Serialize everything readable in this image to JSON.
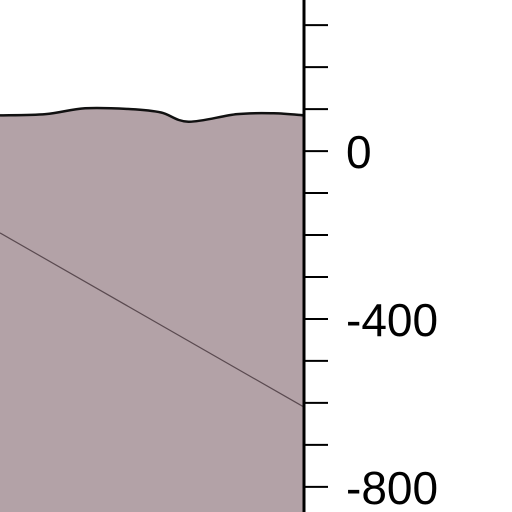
{
  "chart_data": {
    "type": "area",
    "title": "",
    "xlabel": "",
    "ylabel": "",
    "ylim": [
      -860,
      360
    ],
    "ticks": {
      "major": [
        0,
        -400,
        -800
      ],
      "minor_step": 100,
      "labels": [
        "0",
        "-400",
        "-800"
      ]
    },
    "series": [
      {
        "kind": "surface",
        "points": [
          [
            0,
            85
          ],
          [
            0.15,
            88
          ],
          [
            0.28,
            102
          ],
          [
            0.43,
            100
          ],
          [
            0.53,
            92
          ],
          [
            0.62,
            70
          ],
          [
            0.78,
            88
          ],
          [
            0.9,
            90
          ],
          [
            1.0,
            85
          ]
        ]
      },
      {
        "kind": "dipping-line",
        "points": [
          [
            0,
            -195
          ],
          [
            1.0,
            -610
          ]
        ]
      }
    ]
  },
  "colors": {
    "fill": "#b3a2a7",
    "surface_stroke": "#111111",
    "line_stroke": "#5a4a50",
    "axis": "#000000",
    "background": "#ffffff"
  }
}
